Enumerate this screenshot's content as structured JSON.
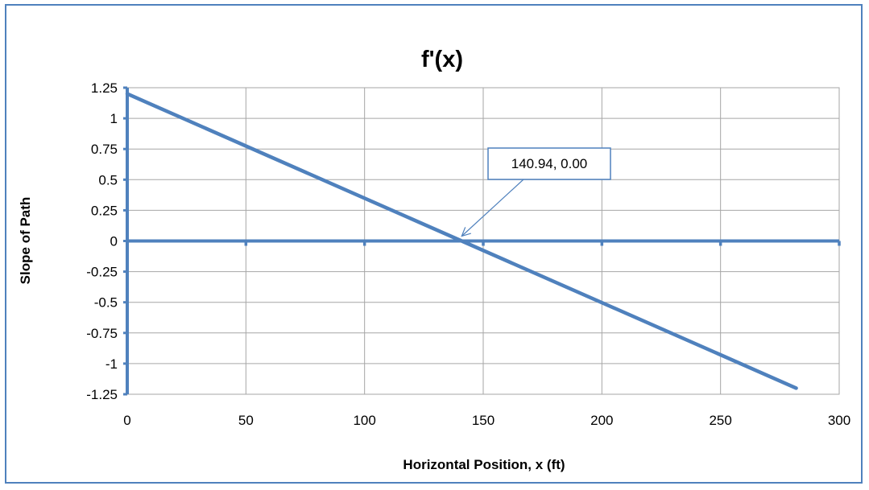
{
  "chart_data": {
    "type": "line",
    "title": "f'(x)",
    "xlabel": "Horizontal Position, x (ft)",
    "ylabel": "Slope of Path",
    "xlim": [
      0,
      300
    ],
    "ylim": [
      -1.25,
      1.25
    ],
    "x_ticks": [
      0,
      50,
      100,
      150,
      200,
      250,
      300
    ],
    "y_ticks": [
      1.25,
      1,
      0.75,
      0.5,
      0.25,
      0,
      -0.25,
      -0.5,
      -0.75,
      -1,
      -1.25
    ],
    "x_tick_labels": [
      "0",
      "50",
      "100",
      "150",
      "200",
      "250",
      "300"
    ],
    "y_tick_labels": [
      "1.25",
      "1",
      "0.75",
      "0.5",
      "0.25",
      "0",
      "-0.25",
      "-0.5",
      "-0.75",
      "-1",
      "-1.25"
    ],
    "grid": true,
    "series": [
      {
        "x": [
          0,
          281.88
        ],
        "y": [
          1.2,
          -1.2
        ],
        "color": "#4f81bd"
      }
    ],
    "reference_line": {
      "y": 0,
      "color": "#4f81bd"
    },
    "annotation": {
      "text": "140.94, 0.00",
      "x": 140.94,
      "y": 0
    },
    "colors": {
      "series": "#4f81bd",
      "grid": "#a6a6a6",
      "frame": "#4f81bd"
    }
  }
}
